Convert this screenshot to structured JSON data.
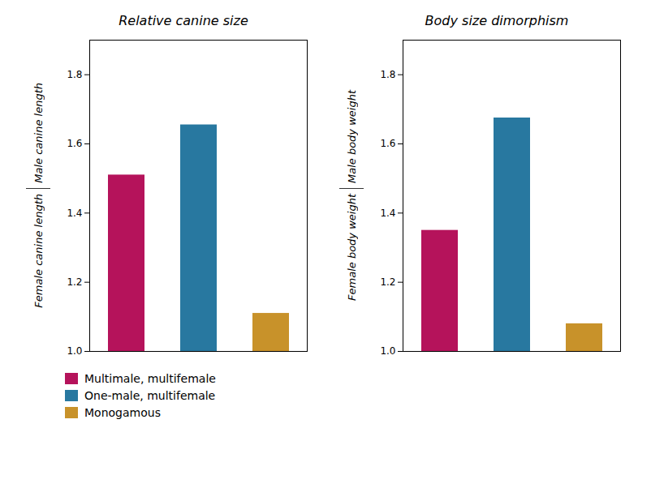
{
  "chart_data": [
    {
      "type": "bar",
      "title": "Relative canine size",
      "ylabel": [
        "Male canine length",
        "Female canine length"
      ],
      "categories": [
        "Multimale, multifemale",
        "One-male, multifemale",
        "Monogamous"
      ],
      "values": [
        1.51,
        1.655,
        1.11
      ],
      "colors": [
        "#b5135b",
        "#2878a0",
        "#c8922a"
      ],
      "ylim": [
        1.0,
        1.9
      ],
      "yticks": [
        {
          "value": 1.0,
          "label": "1.0"
        },
        1.2,
        1.4,
        1.6,
        1.8
      ],
      "tick_labels": "y",
      "grid": false,
      "legend": "lower left"
    },
    {
      "type": "bar",
      "title": "Body size dimorphism",
      "ylabel": [
        "Male body weight",
        "Female body weight"
      ],
      "categories": [
        "Multimale, multifemale",
        "One-male, multifemale",
        "Monogamous"
      ],
      "values": [
        1.35,
        1.675,
        1.08
      ],
      "colors": [
        "#b5135b",
        "#2878a0",
        "#c8922a"
      ],
      "ylim": [
        1.0,
        1.9
      ],
      "yticks": [
        {
          "value": 1.0,
          "label": "1.0"
        },
        1.2,
        1.4,
        1.6,
        1.8
      ],
      "tick_labels": "y",
      "grid": false,
      "legend": "lower left"
    }
  ]
}
